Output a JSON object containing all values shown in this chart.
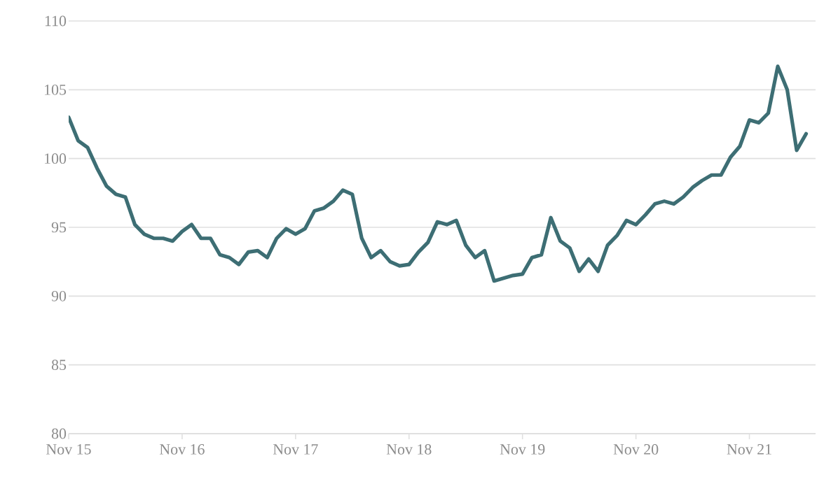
{
  "chart_data": {
    "type": "line",
    "x": [
      "2015-11",
      "2015-12",
      "2016-01",
      "2016-02",
      "2016-03",
      "2016-04",
      "2016-05",
      "2016-06",
      "2016-07",
      "2016-08",
      "2016-09",
      "2016-10",
      "2016-11",
      "2016-12",
      "2017-01",
      "2017-02",
      "2017-03",
      "2017-04",
      "2017-05",
      "2017-06",
      "2017-07",
      "2017-08",
      "2017-09",
      "2017-10",
      "2017-11",
      "2017-12",
      "2018-01",
      "2018-02",
      "2018-03",
      "2018-04",
      "2018-05",
      "2018-06",
      "2018-07",
      "2018-08",
      "2018-09",
      "2018-10",
      "2018-11",
      "2018-12",
      "2019-01",
      "2019-02",
      "2019-03",
      "2019-04",
      "2019-05",
      "2019-06",
      "2019-07",
      "2019-08",
      "2019-09",
      "2019-10",
      "2019-11",
      "2019-12",
      "2020-01",
      "2020-02",
      "2020-03",
      "2020-04",
      "2020-05",
      "2020-06",
      "2020-07",
      "2020-08",
      "2020-09",
      "2020-10",
      "2020-11",
      "2020-12",
      "2021-01",
      "2021-02",
      "2021-03",
      "2021-04",
      "2021-05",
      "2021-06",
      "2021-07",
      "2021-08",
      "2021-09",
      "2021-10",
      "2021-11",
      "2021-12",
      "2022-01",
      "2022-02",
      "2022-03",
      "2022-04",
      "2022-05"
    ],
    "series": [
      {
        "color": "#3d6e74",
        "values": [
          103,
          101.3,
          100.8,
          99.3,
          98,
          97.4,
          97.2,
          95.2,
          94.5,
          94.2,
          94.2,
          94,
          94.7,
          95.2,
          94.2,
          94.2,
          93,
          92.8,
          92.3,
          93.2,
          93.3,
          92.8,
          94.2,
          94.9,
          94.5,
          94.9,
          96.2,
          96.4,
          96.9,
          97.7,
          97.4,
          94.2,
          92.8,
          93.3,
          92.5,
          92.2,
          92.3,
          93.2,
          93.9,
          95.4,
          95.2,
          95.5,
          93.7,
          92.8,
          93.3,
          91.1,
          91.3,
          91.5,
          91.6,
          92.8,
          93,
          95.7,
          94,
          93.5,
          91.8,
          92.7,
          91.8,
          93.7,
          94.4,
          95.5,
          95.2,
          95.9,
          96.7,
          96.9,
          96.7,
          97.2,
          97.9,
          98.4,
          98.8,
          98.8,
          100.1,
          100.9,
          102.8,
          102.6,
          103.3,
          106.7,
          105,
          100.6,
          101.8
        ]
      }
    ],
    "xlim": [
      "2015-11",
      "2022-06"
    ],
    "xticks": [
      {
        "value": "2015-11",
        "label": "Nov 15"
      },
      {
        "value": "2016-11",
        "label": "Nov 16"
      },
      {
        "value": "2017-11",
        "label": "Nov 17"
      },
      {
        "value": "2018-11",
        "label": "Nov 18"
      },
      {
        "value": "2019-11",
        "label": "Nov 19"
      },
      {
        "value": "2020-11",
        "label": "Nov 20"
      },
      {
        "value": "2021-11",
        "label": "Nov 21"
      }
    ],
    "ylim": [
      80,
      110
    ],
    "yticks": [
      80,
      85,
      90,
      95,
      100,
      105,
      110
    ],
    "grid": "y",
    "line_style": "solid",
    "marker": "none"
  }
}
